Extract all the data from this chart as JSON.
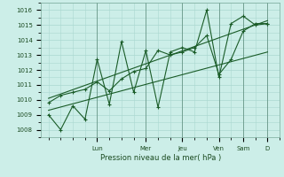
{
  "xlabel": "Pression niveau de la mer( hPa )",
  "bg_color": "#cceee8",
  "grid_color": "#aad8d0",
  "line_color": "#1a5c28",
  "ylim": [
    1007.5,
    1016.5
  ],
  "yticks": [
    1008,
    1009,
    1010,
    1011,
    1012,
    1013,
    1014,
    1015,
    1016
  ],
  "day_labels": [
    "Lun",
    "Mer",
    "Jeu",
    "Ven",
    "Sam",
    "D"
  ],
  "day_positions": [
    2.0,
    4.0,
    5.5,
    7.0,
    8.0,
    9.0
  ],
  "xlim": [
    -0.3,
    9.5
  ],
  "series1_x": [
    0.0,
    0.5,
    1.0,
    1.5,
    2.0,
    2.5,
    3.0,
    3.5,
    4.0,
    4.5,
    5.0,
    5.5,
    6.0,
    6.5,
    7.0,
    7.5,
    8.0,
    8.5,
    9.0
  ],
  "series1_y": [
    1009.0,
    1008.0,
    1009.6,
    1008.7,
    1012.7,
    1009.7,
    1013.9,
    1010.5,
    1013.3,
    1009.5,
    1013.2,
    1013.5,
    1013.2,
    1016.0,
    1011.5,
    1015.1,
    1015.6,
    1015.0,
    1015.1
  ],
  "series2_x": [
    0.0,
    0.5,
    1.0,
    1.5,
    2.0,
    2.5,
    3.0,
    3.5,
    4.0,
    4.5,
    5.0,
    5.5,
    6.0,
    6.5,
    7.0,
    7.5,
    8.0,
    8.5,
    9.0
  ],
  "series2_y": [
    1009.8,
    1010.3,
    1010.5,
    1010.7,
    1011.2,
    1010.6,
    1011.4,
    1011.9,
    1012.1,
    1013.3,
    1013.0,
    1013.2,
    1013.5,
    1014.3,
    1011.7,
    1012.7,
    1014.6,
    1015.1,
    1015.1
  ],
  "trend1_x": [
    0.0,
    9.0
  ],
  "trend1_y": [
    1009.3,
    1013.2
  ],
  "trend2_x": [
    0.0,
    9.0
  ],
  "trend2_y": [
    1010.1,
    1015.3
  ]
}
